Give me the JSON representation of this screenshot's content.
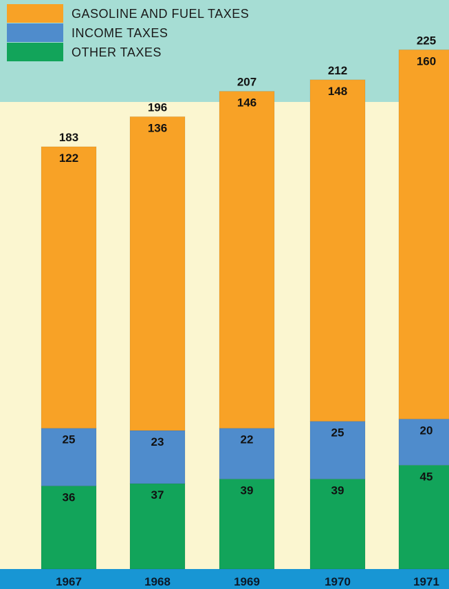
{
  "chart_data": {
    "type": "bar",
    "stacked": true,
    "categories": [
      "1967",
      "1968",
      "1969",
      "1970",
      "1971"
    ],
    "series": [
      {
        "name": "OTHER TAXES",
        "values": [
          36,
          37,
          39,
          39,
          45
        ],
        "color": "#12a45a"
      },
      {
        "name": "INCOME TAXES",
        "values": [
          25,
          23,
          22,
          25,
          20
        ],
        "color": "#4f8ccc"
      },
      {
        "name": "GASOLINE AND FUEL TAXES",
        "values": [
          122,
          136,
          146,
          148,
          160
        ],
        "color": "#f8a226"
      }
    ],
    "totals": [
      183,
      196,
      207,
      212,
      225
    ],
    "legend_order": [
      "GASOLINE AND FUEL TAXES",
      "INCOME TAXES",
      "OTHER TAXES"
    ],
    "legend_position": "top-left",
    "title": "",
    "xlabel": "",
    "ylabel": "",
    "grid": false
  },
  "colors": {
    "top_band": "#a6ddd4",
    "background": "#fbf6d0",
    "axis_band": "#1896d4"
  }
}
